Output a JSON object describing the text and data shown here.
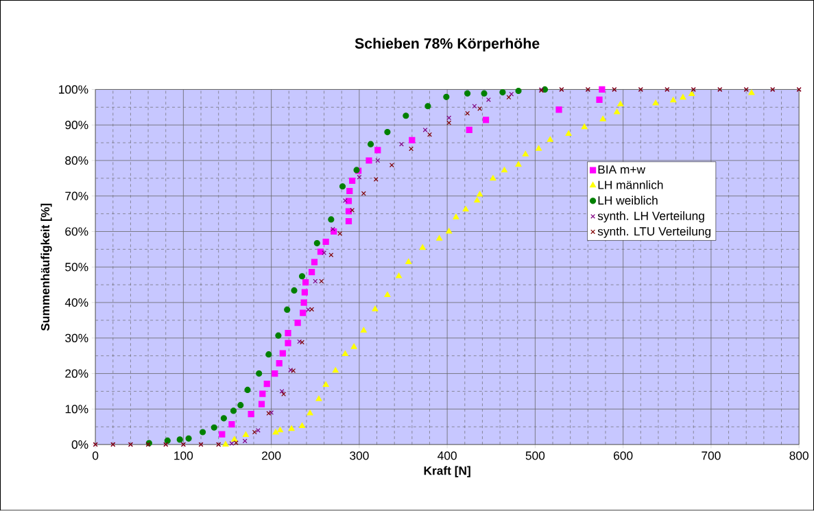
{
  "chart_data": {
    "type": "scatter",
    "title": "Schieben 78% Körperhöhe",
    "xlabel": "Kraft [N]",
    "ylabel": "Summenhäufigkeit [%]",
    "xlim": [
      0,
      800
    ],
    "xticks": [
      0,
      100,
      200,
      300,
      400,
      500,
      600,
      700,
      800
    ],
    "ylim": [
      0,
      100
    ],
    "yticks": [
      {
        "value": 0,
        "label": "0%"
      },
      {
        "value": 10,
        "label": "10%"
      },
      {
        "value": 20,
        "label": "20%"
      },
      {
        "value": 30,
        "label": "30%"
      },
      {
        "value": 40,
        "label": "40%"
      },
      {
        "value": 50,
        "label": "50%"
      },
      {
        "value": 60,
        "label": "60%"
      },
      {
        "value": 70,
        "label": "70%"
      },
      {
        "value": 80,
        "label": "80%"
      },
      {
        "value": 90,
        "label": "90%"
      },
      {
        "value": 100,
        "label": "100%"
      }
    ],
    "grid": true,
    "legend": "right",
    "series": [
      {
        "name": "BIA m+w",
        "color": "#ff00ff",
        "marker": "square",
        "x": [
          144,
          155,
          177,
          189,
          190,
          195,
          204,
          209,
          213,
          219,
          219,
          230,
          236,
          237,
          238,
          239,
          246,
          249,
          256,
          262,
          271,
          288,
          288,
          288,
          289,
          292,
          299,
          311,
          321,
          360,
          425,
          444,
          527,
          573,
          576
        ],
        "values": [
          2.9,
          5.7,
          8.6,
          11.4,
          14.3,
          17.1,
          20,
          22.9,
          25.7,
          28.6,
          31.4,
          34.3,
          37.1,
          40,
          42.9,
          45.7,
          48.6,
          51.4,
          54.3,
          57.1,
          60,
          62.9,
          65.7,
          68.6,
          71.4,
          74.3,
          77.1,
          80,
          82.9,
          85.7,
          88.6,
          91.4,
          94.3,
          97.1,
          100
        ]
      },
      {
        "name": "LH männlich",
        "color": "#ffff00",
        "marker": "triangle",
        "x": [
          148,
          158,
          171,
          205,
          210,
          223,
          235,
          244,
          254,
          262,
          273,
          284,
          294,
          305,
          318,
          332,
          345,
          356,
          372,
          391,
          402,
          410,
          421,
          434,
          437,
          452,
          465,
          481,
          489,
          504,
          517,
          538,
          556,
          577,
          593,
          597,
          637,
          657,
          668,
          678,
          746
        ],
        "values": [
          0,
          1.4,
          2.7,
          3.4,
          4,
          4.4,
          5.2,
          8.8,
          12.8,
          16.8,
          20.8,
          25.5,
          27.5,
          32.1,
          38.1,
          42.1,
          47.4,
          51.4,
          55.4,
          58,
          60,
          64,
          66.2,
          68.7,
          70.4,
          74.9,
          77.2,
          78.8,
          81.7,
          83.3,
          85.8,
          87.5,
          89.4,
          91.6,
          93.6,
          95.8,
          96.1,
          96.9,
          97.7,
          98.7,
          99
        ]
      },
      {
        "name": "LH weiblich",
        "color": "#008000",
        "marker": "circle",
        "x": [
          61,
          82,
          96,
          106,
          122,
          135,
          146,
          157,
          165,
          173,
          186,
          197,
          208,
          218,
          226,
          235,
          252,
          268,
          281,
          297,
          313,
          332,
          353,
          378,
          399,
          423,
          442,
          463,
          481,
          511
        ],
        "values": [
          0.4,
          1.1,
          1.4,
          1.7,
          3.5,
          4.8,
          7.4,
          9.5,
          11.1,
          15.4,
          20,
          25.4,
          30.7,
          38,
          43.4,
          47.4,
          56.7,
          63.4,
          72.7,
          77.3,
          84.6,
          88,
          92.6,
          95.3,
          97.9,
          98.9,
          98.9,
          99.2,
          99.6,
          100
        ]
      },
      {
        "name": "synth. LH Verteilung",
        "color": "#800080",
        "marker": "cross",
        "x": [
          0,
          20,
          40,
          60,
          80,
          100,
          120,
          140,
          155,
          170,
          185,
          200,
          212,
          222,
          232,
          242,
          250,
          260,
          270,
          284,
          300,
          321,
          348,
          375,
          402,
          431,
          447,
          473,
          507,
          530,
          560,
          590,
          620,
          650,
          680,
          710,
          740,
          770,
          800
        ],
        "values": [
          0,
          0,
          0,
          0,
          0,
          0,
          0,
          0,
          0.3,
          1,
          4,
          9,
          15,
          21,
          29,
          38,
          46,
          54,
          60.7,
          68.7,
          75.3,
          80,
          84.6,
          88.6,
          92,
          95.3,
          97.1,
          98.7,
          100,
          100,
          100,
          100,
          100,
          100,
          100,
          100,
          100,
          100,
          100
        ]
      },
      {
        "name": "synth. LTU Verteilung",
        "color": "#800000",
        "marker": "cross",
        "x": [
          0,
          20,
          40,
          60,
          80,
          100,
          120,
          140,
          160,
          181,
          197,
          214,
          225,
          235,
          246,
          257,
          268,
          278,
          292,
          305,
          319,
          337,
          359,
          380,
          402,
          423,
          437,
          470,
          507,
          530,
          560,
          590,
          620,
          650,
          680,
          710,
          740,
          770,
          800
        ],
        "values": [
          0,
          0,
          0,
          0,
          0,
          0,
          0,
          0,
          0.5,
          3.5,
          8.8,
          14.2,
          20.8,
          28.8,
          38.1,
          46,
          53.4,
          59.4,
          66,
          70.7,
          74.7,
          78.7,
          83.3,
          87.3,
          90.6,
          93.3,
          94.6,
          97.8,
          99.7,
          100,
          100,
          100,
          100,
          100,
          100,
          100,
          100,
          100,
          100
        ]
      }
    ]
  }
}
